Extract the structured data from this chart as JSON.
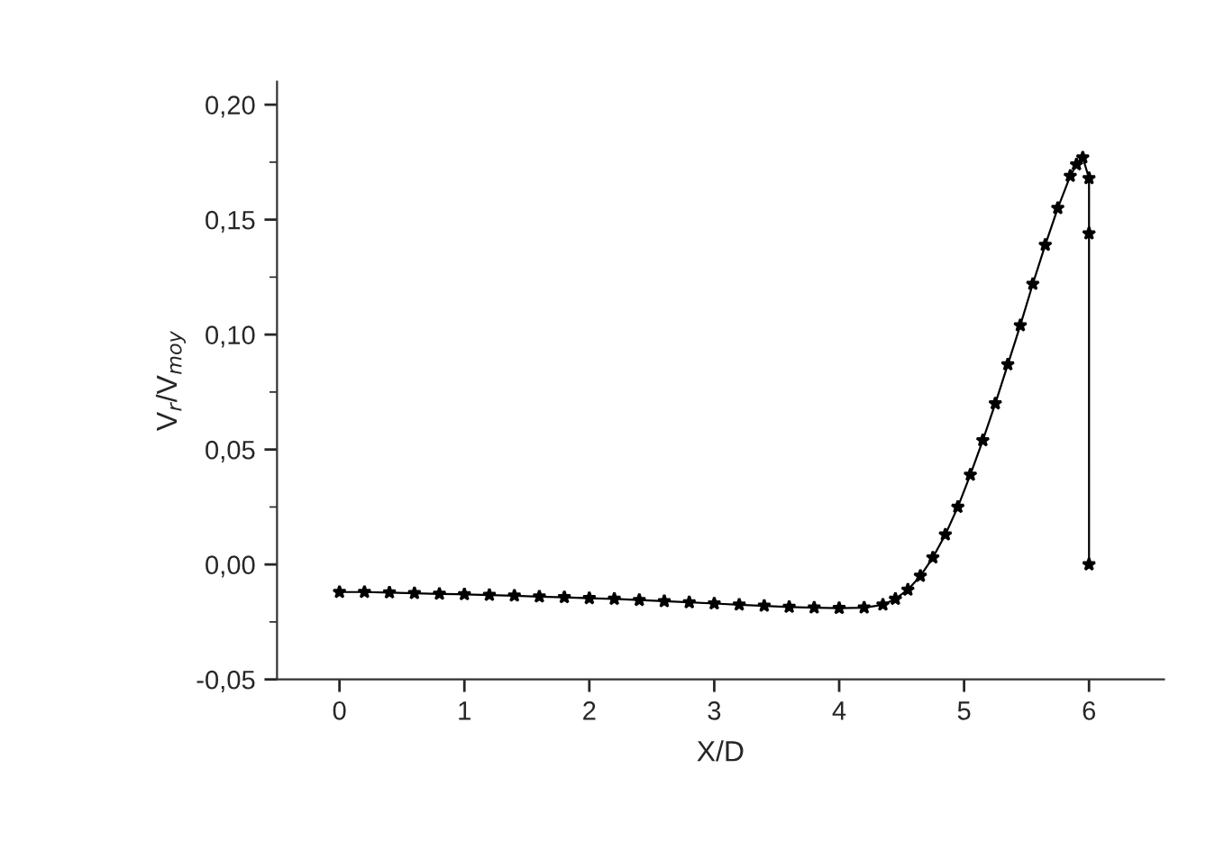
{
  "chart_data": {
    "type": "line",
    "xlabel": "X/D",
    "ylabel": "V$_{r}$/V$_{moy}$",
    "x": [
      0,
      0.2,
      0.4,
      0.6,
      0.8,
      1.0,
      1.2,
      1.4,
      1.6,
      1.8,
      2.0,
      2.2,
      2.4,
      2.6,
      2.8,
      3.0,
      3.2,
      3.4,
      3.6,
      3.8,
      4.0,
      4.2,
      4.35,
      4.45,
      4.55,
      4.65,
      4.75,
      4.85,
      4.95,
      5.05,
      5.15,
      5.25,
      5.35,
      5.45,
      5.55,
      5.65,
      5.75,
      5.85,
      5.9,
      5.95,
      6.0,
      6.0,
      6.0
    ],
    "series": [
      {
        "color": "#000000",
        "values": [
          -0.012,
          -0.012,
          -0.0122,
          -0.0125,
          -0.0128,
          -0.013,
          -0.0133,
          -0.0136,
          -0.014,
          -0.0143,
          -0.0147,
          -0.015,
          -0.0155,
          -0.016,
          -0.0165,
          -0.017,
          -0.0175,
          -0.018,
          -0.0185,
          -0.0188,
          -0.019,
          -0.0188,
          -0.0175,
          -0.015,
          -0.011,
          -0.005,
          0.003,
          0.013,
          0.025,
          0.039,
          0.054,
          0.07,
          0.087,
          0.104,
          0.122,
          0.139,
          0.155,
          0.169,
          0.174,
          0.177,
          0.168,
          0.144,
          0.0
        ]
      }
    ],
    "marker": "star",
    "line_style": "solid",
    "grid": false,
    "legend": false,
    "xlim": [
      -0.5,
      6.6
    ],
    "xticks": [
      0,
      1,
      2,
      3,
      4,
      5,
      6
    ],
    "ylim": [
      -0.05,
      0.21
    ],
    "yticks": [
      {
        "value": -0.05,
        "label": "-0,05"
      },
      {
        "value": 0.0,
        "label": "0,00"
      },
      {
        "value": 0.05,
        "label": "0,05"
      },
      {
        "value": 0.1,
        "label": "0,10"
      },
      {
        "value": 0.15,
        "label": "0,15"
      },
      {
        "value": 0.2,
        "label": "0,20"
      }
    ]
  }
}
